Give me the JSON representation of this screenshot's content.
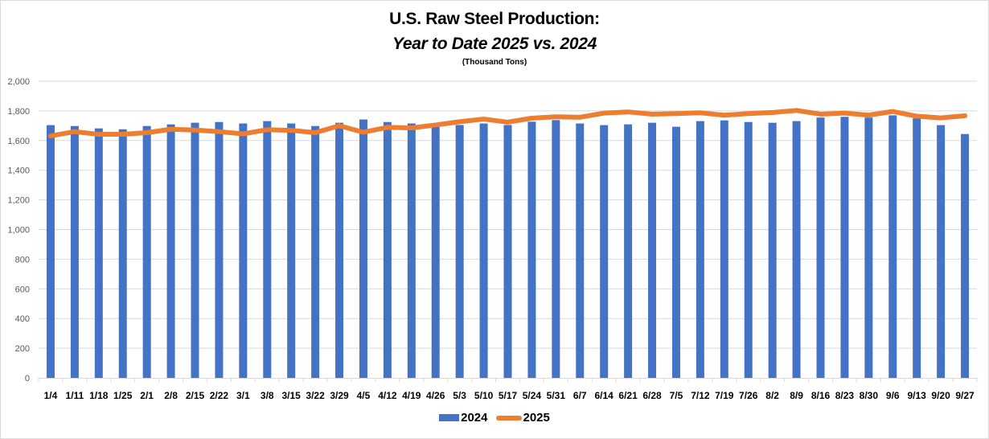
{
  "chart_data": {
    "type": "bar",
    "title": "U.S. Raw Steel Production:",
    "subtitle": "Year to Date 2025 vs. 2024",
    "unit_note": "(Thousand Tons)",
    "xlabel": "",
    "ylabel": "",
    "ylim": [
      0,
      2000
    ],
    "yticks": [
      0,
      200,
      400,
      600,
      800,
      1000,
      1200,
      1400,
      1600,
      1800,
      2000
    ],
    "ytick_labels": [
      "0",
      "200",
      "400",
      "600",
      "800",
      "1,000",
      "1,200",
      "1,400",
      "1,600",
      "1,800",
      "2,000"
    ],
    "grid": true,
    "legend_position": "bottom",
    "categories": [
      "1/4",
      "1/11",
      "1/18",
      "1/25",
      "2/1",
      "2/8",
      "2/15",
      "2/22",
      "3/1",
      "3/8",
      "3/15",
      "3/22",
      "3/29",
      "4/5",
      "4/12",
      "4/19",
      "4/26",
      "5/3",
      "5/10",
      "5/17",
      "5/24",
      "5/31",
      "6/7",
      "6/14",
      "6/21",
      "6/28",
      "7/5",
      "7/12",
      "7/19",
      "7/26",
      "8/2",
      "8/9",
      "8/16",
      "8/23",
      "8/30",
      "9/6",
      "9/13",
      "9/20",
      "9/27"
    ],
    "series": [
      {
        "name": "2024",
        "type": "bar",
        "color": "#4472c4",
        "values": [
          1704,
          1698,
          1682,
          1676,
          1698,
          1709,
          1720,
          1725,
          1715,
          1731,
          1715,
          1698,
          1720,
          1742,
          1725,
          1715,
          1695,
          1705,
          1715,
          1705,
          1727,
          1738,
          1715,
          1704,
          1709,
          1720,
          1693,
          1731,
          1736,
          1725,
          1720,
          1731,
          1755,
          1760,
          1755,
          1770,
          1750,
          1704,
          1644
        ]
      },
      {
        "name": "2025",
        "type": "line",
        "color": "#ed7d31",
        "values": [
          1631,
          1660,
          1642,
          1642,
          1653,
          1676,
          1671,
          1660,
          1645,
          1673,
          1669,
          1653,
          1700,
          1656,
          1689,
          1685,
          1705,
          1727,
          1745,
          1724,
          1751,
          1760,
          1757,
          1785,
          1793,
          1778,
          1782,
          1787,
          1771,
          1782,
          1789,
          1803,
          1778,
          1785,
          1771,
          1796,
          1764,
          1753,
          1767
        ]
      }
    ]
  },
  "legend": {
    "items": [
      {
        "label": "2024",
        "color": "#4472c4"
      },
      {
        "label": "2025",
        "color": "#ed7d31"
      }
    ]
  }
}
